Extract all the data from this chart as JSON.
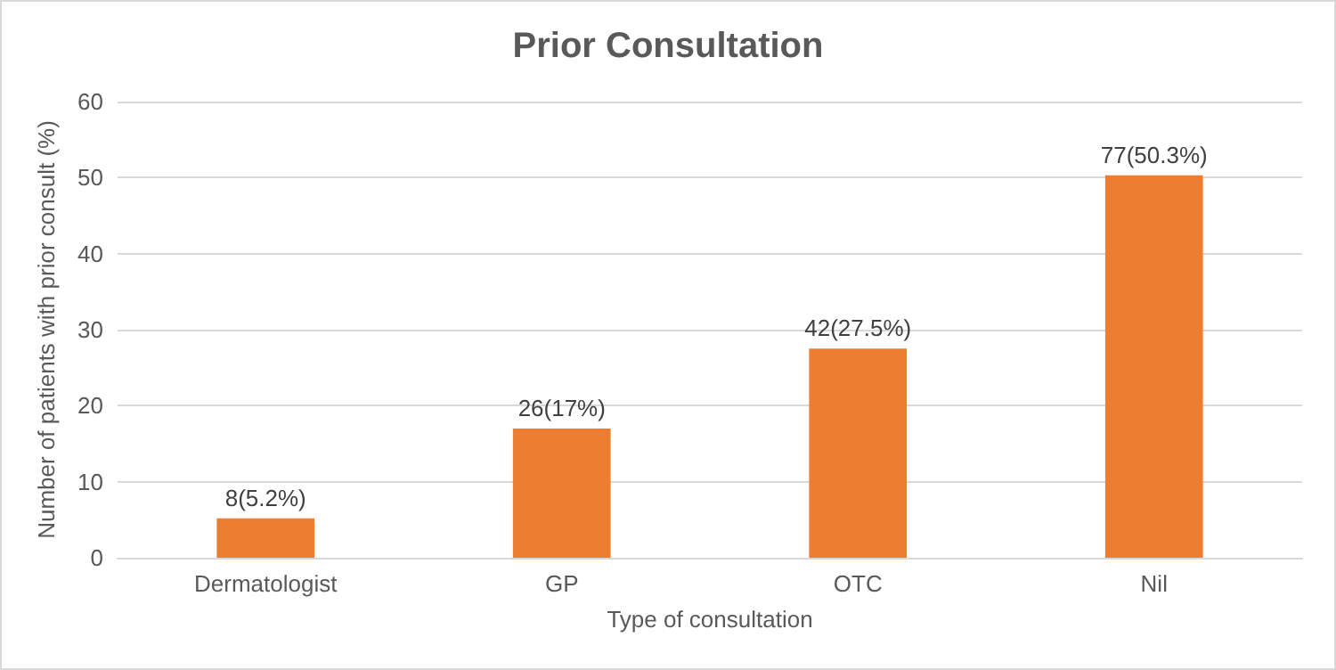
{
  "chart_data": {
    "type": "bar",
    "title": "Prior Consultation",
    "xlabel": "Type of consultation",
    "ylabel": "Number of patients with prior consult (%)",
    "categories": [
      "Dermatologist",
      "GP",
      "OTC",
      "Nil"
    ],
    "values": [
      5.2,
      17,
      27.5,
      50.3
    ],
    "value_labels": [
      "8(5.2%)",
      "26(17%)",
      "42(27.5%)",
      "77(50.3%)"
    ],
    "color": "#ed7d31",
    "ylim": [
      0,
      60
    ],
    "yticks": [
      0,
      10,
      20,
      30,
      40,
      50,
      60
    ],
    "grid": "y"
  }
}
